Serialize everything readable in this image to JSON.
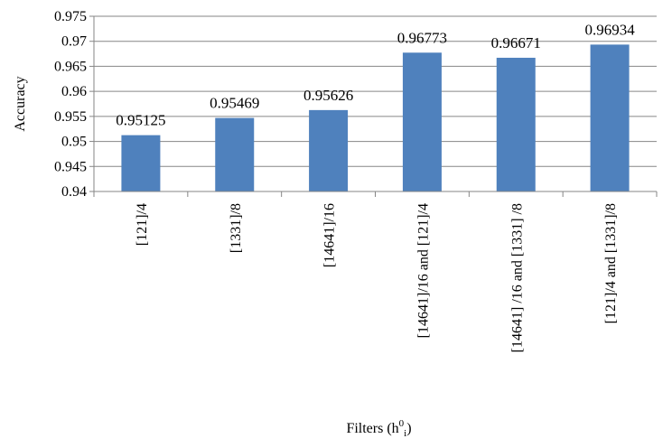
{
  "chart_data": {
    "type": "bar",
    "categories": [
      "[121]/4",
      "[1331]/8",
      "[14641]/16",
      "[14641]/16 and [121]/4",
      "[14641] /16 and [1331] /8",
      "[121]/4 and [1331]/8"
    ],
    "values": [
      0.95125,
      0.95469,
      0.95626,
      0.96773,
      0.96671,
      0.96934
    ],
    "data_labels": [
      "0.95125",
      "0.95469",
      "0.95626",
      "0.96773",
      "0.96671",
      "0.96934"
    ],
    "ylabel": "Accuracy",
    "xlabel": "Filters (h",
    "xlabel_sup": "0",
    "xlabel_sub": "i",
    "xlabel_close": ")",
    "ylim": [
      0.94,
      0.975
    ],
    "yticks": [
      0.94,
      0.945,
      0.95,
      0.955,
      0.96,
      0.965,
      0.97,
      0.975
    ],
    "ytick_labels": [
      "0.94",
      "0.945",
      "0.95",
      "0.955",
      "0.96",
      "0.965",
      "0.97",
      "0.975"
    ],
    "grid": true,
    "bar_color": "#4f81bd",
    "grid_color": "#868686"
  }
}
